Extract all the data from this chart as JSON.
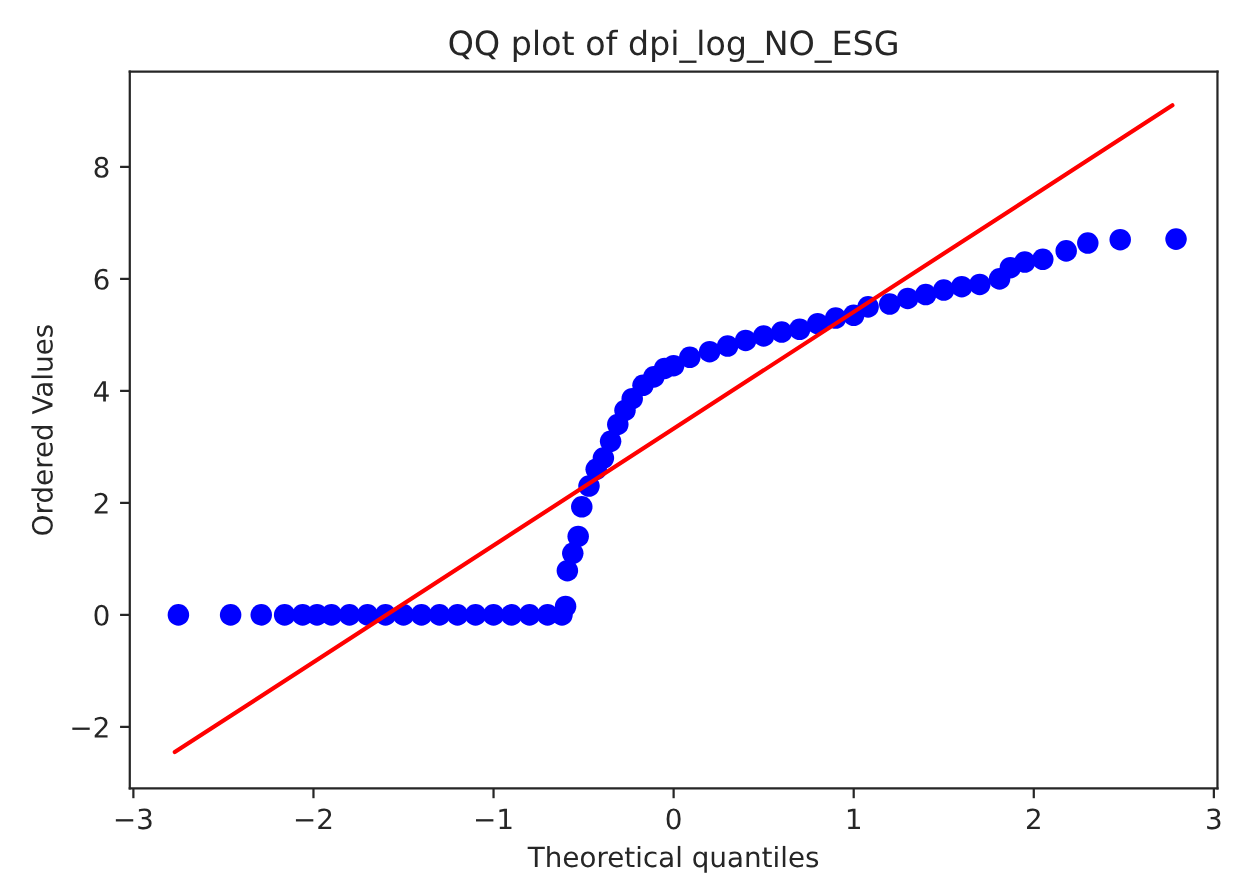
{
  "chart_data": {
    "type": "scatter",
    "title": "QQ plot of dpi_log_NO_ESG",
    "xlabel": "Theoretical quantiles",
    "ylabel": "Ordered Values",
    "xlim": [
      -3.02,
      3.02
    ],
    "xticks": [
      {
        "value": -3,
        "label": "−3"
      },
      {
        "value": -2,
        "label": "−2"
      },
      {
        "value": -1,
        "label": "−1"
      },
      0,
      1,
      2,
      3
    ],
    "ylim": [
      -3.1,
      9.7
    ],
    "yticks": [
      {
        "value": -2,
        "label": "−2"
      },
      0,
      2,
      4,
      6,
      8
    ],
    "grid": false,
    "legend": false,
    "series": [
      {
        "marker": "circle",
        "color": "#0000ff",
        "x": [
          -2.75,
          -2.46,
          -2.29,
          -2.16,
          -2.06,
          -1.98,
          -1.9,
          -1.8,
          -1.7,
          -1.6,
          -1.5,
          -1.4,
          -1.3,
          -1.2,
          -1.1,
          -1.0,
          -0.9,
          -0.8,
          -0.7,
          -0.62,
          -0.6,
          -0.59,
          -0.56,
          -0.53,
          -0.51,
          -0.47,
          -0.43,
          -0.39,
          -0.35,
          -0.31,
          -0.27,
          -0.23,
          -0.17,
          -0.11,
          -0.05,
          0.0,
          0.09,
          0.2,
          0.3,
          0.4,
          0.5,
          0.6,
          0.7,
          0.8,
          0.9,
          1.0,
          1.08,
          1.2,
          1.3,
          1.4,
          1.5,
          1.6,
          1.7,
          1.81,
          1.87,
          1.95,
          2.05,
          2.18,
          2.3,
          2.48,
          2.79
        ],
        "values": [
          0,
          0,
          0,
          0,
          0,
          0,
          0,
          0,
          0,
          0,
          0,
          0,
          0,
          0,
          0,
          0,
          0,
          0,
          0,
          0,
          0.15,
          0.79,
          1.1,
          1.4,
          1.93,
          2.3,
          2.6,
          2.8,
          3.1,
          3.4,
          3.65,
          3.86,
          4.1,
          4.25,
          4.4,
          4.45,
          4.6,
          4.7,
          4.8,
          4.9,
          4.98,
          5.05,
          5.1,
          5.2,
          5.3,
          5.35,
          5.5,
          5.55,
          5.65,
          5.72,
          5.8,
          5.86,
          5.9,
          6.0,
          6.2,
          6.3,
          6.35,
          6.5,
          6.64,
          6.7,
          6.71
        ]
      },
      {
        "type": "line",
        "color": "#ff0000",
        "x": [
          -2.77,
          2.77
        ],
        "values": [
          -2.45,
          9.1
        ]
      }
    ]
  }
}
